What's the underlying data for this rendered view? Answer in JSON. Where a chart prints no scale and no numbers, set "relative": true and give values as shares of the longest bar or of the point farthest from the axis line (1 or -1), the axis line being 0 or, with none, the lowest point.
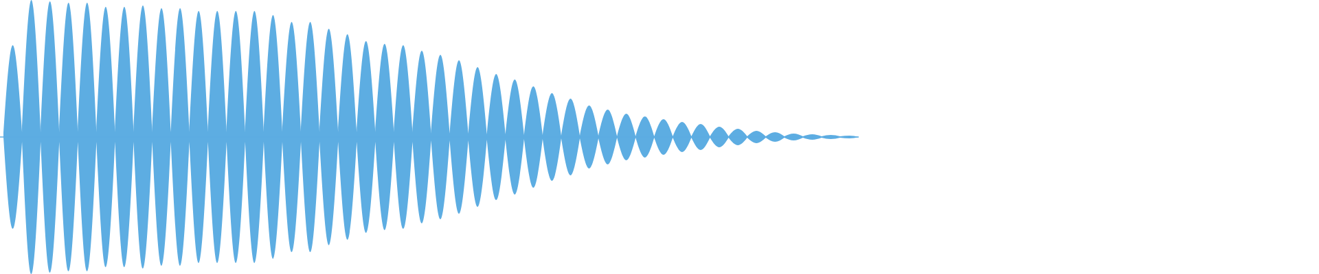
{
  "chart_data": {
    "type": "area",
    "relative": true,
    "categories": [
      null,
      null,
      null,
      null,
      null,
      null,
      null,
      null,
      null,
      null,
      null,
      null,
      null,
      null,
      null,
      null,
      null,
      null,
      null,
      null,
      null,
      null,
      null,
      null,
      null,
      null,
      null,
      null,
      null,
      null,
      null,
      null,
      null,
      null,
      null,
      null,
      null,
      null,
      null,
      null,
      null,
      null,
      null,
      null,
      null,
      null,
      null,
      null,
      null,
      null,
      null,
      null,
      null,
      null,
      null,
      null,
      null,
      null,
      null,
      null,
      null,
      null,
      null,
      null,
      null,
      null,
      null,
      null,
      null,
      null,
      null,
      null,
      null,
      null,
      null,
      null,
      null,
      null,
      null,
      null,
      null,
      null,
      null,
      null,
      null,
      null,
      null,
      null,
      null,
      null,
      null,
      null,
      null
    ],
    "series": [
      {
        "color": "#5dade2",
        "values": [
          0,
          0.67,
          0.035,
          1.0,
          0.035,
          0.99,
          0.035,
          0.98,
          0.035,
          0.98,
          0.035,
          0.95,
          0.035,
          0.95,
          0.035,
          0.96,
          0.035,
          0.94,
          0.035,
          0.94,
          0.035,
          0.92,
          0.035,
          0.92,
          0.035,
          0.92,
          0.035,
          0.92,
          0.035,
          0.89,
          0.035,
          0.84,
          0.035,
          0.84,
          0.035,
          0.79,
          0.035,
          0.75,
          0.035,
          0.7,
          0.035,
          0.68,
          0.035,
          0.67,
          0.035,
          0.63,
          0.025,
          0.6,
          0.025,
          0.56,
          0.025,
          0.51,
          0.02,
          0.46,
          0.02,
          0.42,
          0.015,
          0.37,
          0.015,
          0.32,
          0.01,
          0.28,
          0.01,
          0.23,
          0.01,
          0.2,
          0.005,
          0.17,
          0.005,
          0.15,
          0.005,
          0.13,
          0.005,
          0.11,
          0.005,
          0.095,
          0.005,
          0.075,
          0.005,
          0.06,
          0.005,
          0.045,
          0.005,
          0.035,
          0.005,
          0.025,
          0.005,
          0.02,
          0.005,
          0.015,
          0.005,
          0.01,
          0
        ]
      },
      {
        "color": "#5dade2",
        "values": [
          0,
          -0.67,
          -0.035,
          -1.0,
          -0.035,
          -0.99,
          -0.035,
          -0.98,
          -0.035,
          -0.98,
          -0.035,
          -0.95,
          -0.035,
          -0.95,
          -0.035,
          -0.96,
          -0.035,
          -0.94,
          -0.035,
          -0.94,
          -0.035,
          -0.92,
          -0.035,
          -0.92,
          -0.035,
          -0.92,
          -0.035,
          -0.92,
          -0.035,
          -0.89,
          -0.035,
          -0.84,
          -0.035,
          -0.84,
          -0.035,
          -0.79,
          -0.035,
          -0.75,
          -0.035,
          -0.7,
          -0.035,
          -0.68,
          -0.035,
          -0.67,
          -0.035,
          -0.63,
          -0.025,
          -0.6,
          -0.025,
          -0.56,
          -0.025,
          -0.51,
          -0.02,
          -0.46,
          -0.02,
          -0.42,
          -0.015,
          -0.37,
          -0.015,
          -0.32,
          -0.01,
          -0.28,
          -0.01,
          -0.23,
          -0.01,
          -0.2,
          -0.005,
          -0.17,
          -0.005,
          -0.15,
          -0.005,
          -0.13,
          -0.005,
          -0.11,
          -0.005,
          -0.095,
          -0.005,
          -0.075,
          -0.005,
          -0.06,
          -0.005,
          -0.045,
          -0.005,
          -0.035,
          -0.005,
          -0.025,
          -0.005,
          -0.02,
          -0.005,
          -0.015,
          -0.005,
          -0.01,
          0
        ]
      }
    ]
  }
}
